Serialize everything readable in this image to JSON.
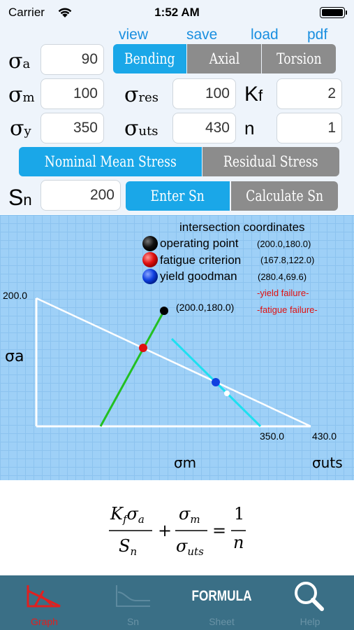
{
  "status_bar": {
    "carrier": "Carrier",
    "time": "1:52 AM"
  },
  "top_links": {
    "view": "view",
    "save": "save",
    "load": "load",
    "pdf": "pdf"
  },
  "labels": {
    "sigma": "σ",
    "a": "a",
    "m": "m",
    "y": "y",
    "res": "res",
    "uts": "uts",
    "K": "K",
    "f": "f",
    "n": "n",
    "S": "S"
  },
  "fields": {
    "sigma_a": "90",
    "sigma_m": "100",
    "sigma_y": "350",
    "sigma_res": "100",
    "sigma_uts": "430",
    "Kf": "2",
    "n": "1",
    "Sn": "200"
  },
  "load_type": {
    "options": [
      "Bending",
      "Axial",
      "Torsion"
    ],
    "selected": "Bending"
  },
  "stress_mode": {
    "options": [
      "Nominal Mean Stress",
      "Residual Stress"
    ],
    "selected": "Nominal Mean Stress"
  },
  "sn_mode": {
    "options": [
      "Enter Sn",
      "Calculate Sn"
    ],
    "selected": "Enter Sn"
  },
  "graph": {
    "legend_title": "intersection coordinates",
    "legend": [
      {
        "label": "operating point",
        "coords": "(200.0,180.0)",
        "color": "#000000"
      },
      {
        "label": "fatigue criterion",
        "coords": "(167.8,122.0)",
        "color": "#e01010"
      },
      {
        "label": "yield goodman",
        "coords": "(280.4,69.6)",
        "color": "#1040e0"
      }
    ],
    "warnings": [
      "-yield failure-",
      "-fatigue failure-"
    ],
    "y_max_label": "200.0",
    "x_yield_label": "350.0",
    "x_uts_label": "430.0",
    "point_label": "(200.0,180.0)",
    "y_axis_label": "σa",
    "x_axis_label": "σm",
    "x_end_label": "σuts",
    "colors": {
      "goodman_line": "#ffffff",
      "load_line": "#22c022",
      "yield_line": "#1ee0f0",
      "warning": "#e01010"
    }
  },
  "formula": {
    "num_left": "K",
    "num_left_sub": "f",
    "num_left_sigma": "σ",
    "num_left_sigma_sub": "a",
    "den_left": "S",
    "den_left_sub": "n",
    "plus": "+",
    "num_mid": "σ",
    "num_mid_sub": "m",
    "den_mid": "σ",
    "den_mid_sub": "uts",
    "equals": "=",
    "num_right": "1",
    "den_right": "n"
  },
  "tabs": [
    {
      "label": "Graph",
      "icon": "graph-icon",
      "active": true,
      "color": "#e02020"
    },
    {
      "label": "Sn",
      "icon": "sn-curve-icon",
      "active": false
    },
    {
      "label": "Sheet",
      "icon": "formula-icon",
      "active": false,
      "icon_text": "FORMULA"
    },
    {
      "label": "Help",
      "icon": "search-icon",
      "active": false
    }
  ]
}
